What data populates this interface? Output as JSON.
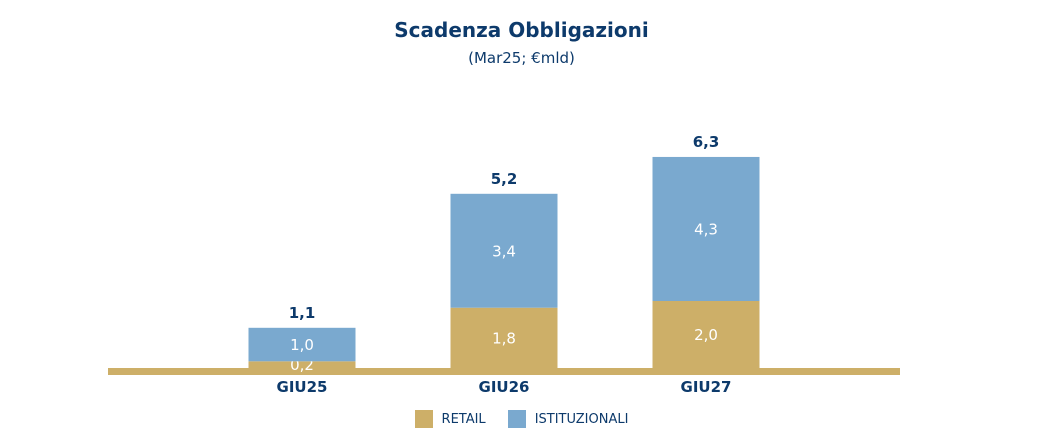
{
  "chart_data": {
    "type": "bar",
    "stacked": true,
    "title": "Scadenza Obbligazioni",
    "subtitle": "(Mar25; €mld)",
    "categories": [
      "GIU25",
      "GIU26",
      "GIU27"
    ],
    "series": [
      {
        "name": "RETAIL",
        "values": [
          0.2,
          1.8,
          2.0
        ],
        "labels": [
          "0,2",
          "1,8",
          "2,0"
        ],
        "color": "#cdaf68"
      },
      {
        "name": "ISTITUZIONALI",
        "values": [
          1.0,
          3.4,
          4.3
        ],
        "labels": [
          "1,0",
          "3,4",
          "4,3"
        ],
        "color": "#7aa9cf"
      }
    ],
    "totals": [
      1.1,
      5.2,
      6.3
    ],
    "total_labels": [
      "1,1",
      "5,2",
      "6,3"
    ],
    "legend_position": "bottom",
    "grid": false
  },
  "colors": {
    "title": "#0d3a6b",
    "baseline": "#cdaf68",
    "segment_label": "#ffffff"
  }
}
